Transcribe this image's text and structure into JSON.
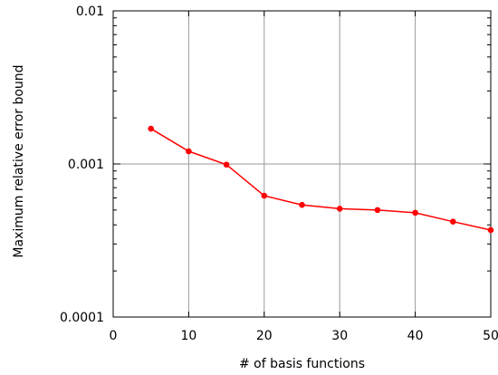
{
  "chart_data": {
    "type": "line",
    "title": "",
    "xlabel": "# of basis functions",
    "ylabel": "Maximum relative error bound",
    "xlim": [
      0,
      50
    ],
    "ylim": [
      0.0001,
      0.01
    ],
    "yscale": "log",
    "grid": true,
    "legend": "none",
    "x_ticks": [
      0,
      10,
      20,
      30,
      40,
      50
    ],
    "x_tick_labels": [
      "0",
      "10",
      "20",
      "30",
      "40",
      "50"
    ],
    "y_ticks": [
      0.0001,
      0.001,
      0.01
    ],
    "y_tick_labels": [
      "0.0001",
      "0.001",
      "0.01"
    ],
    "series": [
      {
        "color": "#ff0000",
        "x": [
          5,
          10,
          15,
          20,
          25,
          30,
          35,
          40,
          45,
          50
        ],
        "y": [
          0.0017,
          0.00121,
          0.00099,
          0.00062,
          0.00054,
          0.00051,
          0.0005,
          0.00048,
          0.00042,
          0.00037
        ]
      }
    ]
  }
}
